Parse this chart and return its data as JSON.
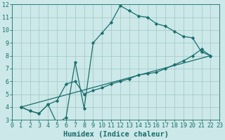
{
  "xlabel": "Humidex (Indice chaleur)",
  "xlim": [
    0,
    23
  ],
  "ylim": [
    3,
    12
  ],
  "xticks": [
    0,
    1,
    2,
    3,
    4,
    5,
    6,
    7,
    8,
    9,
    10,
    11,
    12,
    13,
    14,
    15,
    16,
    17,
    18,
    19,
    20,
    21,
    22,
    23
  ],
  "yticks": [
    3,
    4,
    5,
    6,
    7,
    8,
    9,
    10,
    11,
    12
  ],
  "bg_color": "#cce8e8",
  "grid_color": "#a8cccc",
  "line_color": "#1a6e6e",
  "lines": [
    {
      "x": [
        1,
        2,
        3,
        4,
        5,
        6,
        7,
        8,
        9,
        10,
        11,
        12,
        13,
        14,
        15,
        16,
        17,
        18,
        19,
        20,
        21,
        22
      ],
      "y": [
        4,
        3.7,
        3.5,
        4.2,
        2.7,
        3.2,
        7.5,
        3.9,
        9.0,
        9.8,
        10.6,
        11.9,
        11.5,
        11.1,
        11.0,
        10.5,
        10.3,
        9.9,
        9.5,
        9.4,
        8.3,
        8.0
      ]
    },
    {
      "x": [
        1,
        22
      ],
      "y": [
        4,
        8.0
      ]
    },
    {
      "x": [
        1,
        2,
        3,
        4,
        5,
        6,
        7,
        8,
        9,
        10,
        11,
        12,
        13,
        14,
        15,
        16,
        17,
        18,
        19,
        20,
        21,
        22
      ],
      "y": [
        4,
        3.7,
        3.5,
        4.2,
        4.5,
        5.8,
        6.0,
        5.0,
        5.3,
        5.5,
        5.8,
        6.0,
        6.2,
        6.5,
        6.6,
        6.7,
        7.0,
        7.3,
        7.6,
        8.0,
        8.5,
        8.0
      ]
    }
  ],
  "font_family": "monospace",
  "tick_fontsize": 6,
  "label_fontsize": 7.5
}
